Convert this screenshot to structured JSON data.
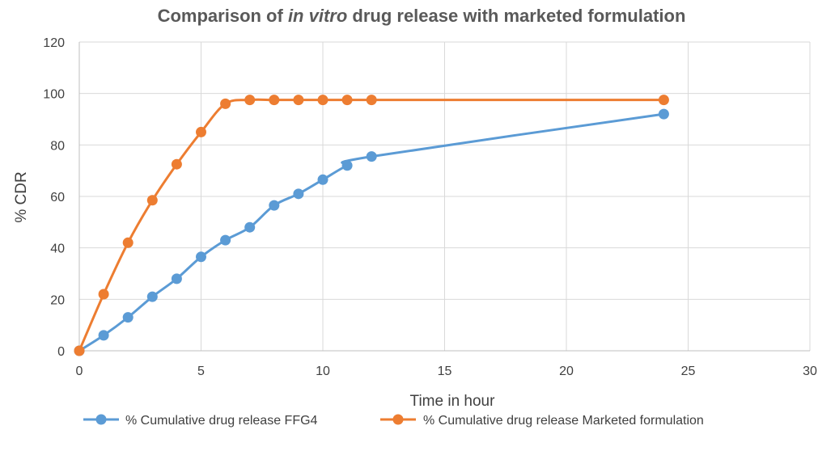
{
  "chart_data": {
    "type": "line",
    "title": "Comparison of in vitro drug release with marketed formulation",
    "title_parts": {
      "before": "Comparison of ",
      "italic": "in vitro",
      "after": " drug release with marketed formulation"
    },
    "xlabel": "Time in hour",
    "ylabel": "% CDR",
    "xlim": [
      0,
      30
    ],
    "ylim": [
      0,
      120
    ],
    "x_ticks": [
      0,
      5,
      10,
      15,
      20,
      25,
      30
    ],
    "y_ticks": [
      0,
      20,
      40,
      60,
      80,
      100,
      120
    ],
    "grid": "major gridlines on both axes",
    "legend_position": "bottom",
    "smooth": true,
    "series": [
      {
        "name": "% Cumulative drug release FFG4",
        "color": "#5B9BD5",
        "x": [
          0,
          1,
          2,
          3,
          4,
          5,
          6,
          7,
          8,
          9,
          10,
          11,
          12,
          24
        ],
        "y": [
          0,
          6,
          13,
          21,
          28,
          36.5,
          43,
          48,
          56.5,
          61,
          66.5,
          72,
          75.5,
          92
        ]
      },
      {
        "name": "% Cumulative drug release Marketed formulation",
        "color": "#ED7D31",
        "x": [
          0,
          1,
          2,
          3,
          4,
          5,
          6,
          7,
          8,
          9,
          10,
          11,
          12,
          24
        ],
        "y": [
          0,
          22,
          42,
          58.5,
          72.5,
          85,
          96,
          97.5,
          97.5,
          97.5,
          97.5,
          97.5,
          97.5,
          97.5
        ]
      }
    ]
  }
}
